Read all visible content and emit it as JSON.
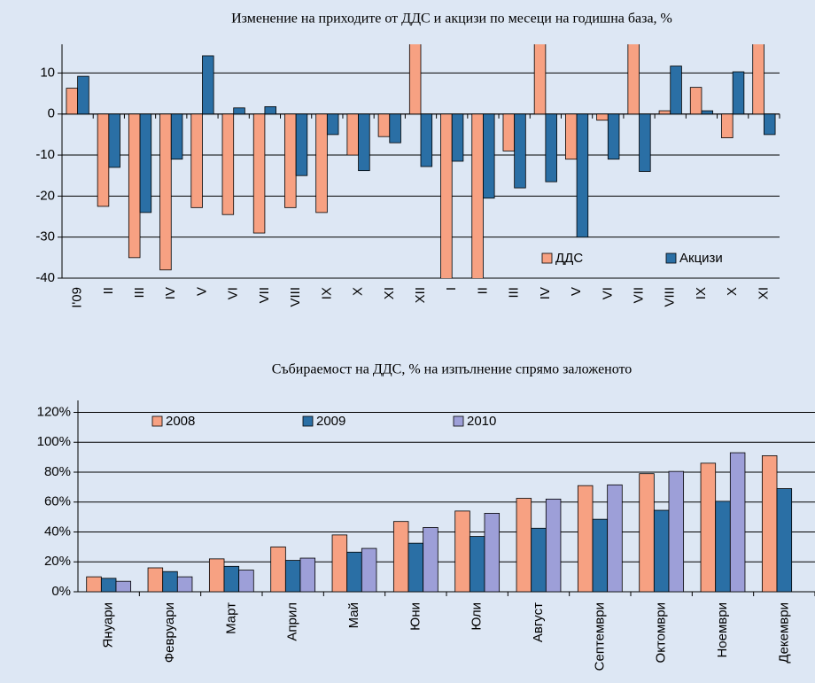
{
  "chart_data": [
    {
      "type": "bar",
      "title": "Изменение на приходите от ДДС и акцизи по месеци на годишна база, %",
      "categories": [
        "I'09",
        "II",
        "III",
        "IV",
        "V",
        "VI",
        "VII",
        "VIII",
        "IX",
        "X",
        "XI",
        "XII",
        "I",
        "II",
        "III",
        "IV",
        "V",
        "VI",
        "VII",
        "VIII",
        "IX",
        "X",
        "XI"
      ],
      "series": [
        {
          "name": "ДДС",
          "color": "#f7a182",
          "values": [
            6.3,
            -22.5,
            -35,
            -38,
            -22.8,
            -24.5,
            -29,
            -22.8,
            -24,
            -10,
            -5.5,
            20,
            -42,
            -41,
            -9,
            20,
            -11,
            -1.5,
            20,
            0.8,
            6.5,
            -5.8,
            20
          ]
        },
        {
          "name": "Акцизи",
          "color": "#2a6fa5",
          "values": [
            9.2,
            -13,
            -24,
            -11,
            14.2,
            1.5,
            1.8,
            -15,
            -5,
            -13.8,
            -7,
            -12.8,
            -11.5,
            -20.5,
            -18,
            -16.5,
            -30,
            -11,
            -14,
            11.7,
            0.8,
            10.3,
            -5
          ]
        }
      ],
      "ylim": [
        -40,
        17
      ],
      "yticks": [
        -40,
        -30,
        -20,
        -10,
        0,
        10
      ],
      "grid": true,
      "legend": "lower right"
    },
    {
      "type": "bar",
      "title": "Събираемост на ДДС, % на изпълнение спрямо заложеното",
      "categories": [
        "Януари",
        "Февруари",
        "Март",
        "Април",
        "Май",
        "Юни",
        "Юли",
        "Август",
        "Септември",
        "Октомври",
        "Ноември",
        "Декември"
      ],
      "series": [
        {
          "name": "2008",
          "color": "#f7a182",
          "values": [
            10,
            16,
            22,
            30,
            38,
            47,
            54,
            62.5,
            71,
            79,
            86,
            91
          ]
        },
        {
          "name": "2009",
          "color": "#2a6fa5",
          "values": [
            9,
            13.5,
            17,
            21,
            26.5,
            32.5,
            37,
            42.5,
            48.5,
            54.5,
            60.5,
            69
          ]
        },
        {
          "name": "2010",
          "color": "#9d9fd8",
          "values": [
            7,
            10,
            14.5,
            22.5,
            29,
            43,
            52.5,
            62,
            71.5,
            80.5,
            93,
            null
          ]
        }
      ],
      "ylim": [
        0,
        128
      ],
      "yticks": [
        {
          "value": 0,
          "label": "0%"
        },
        {
          "value": 20,
          "label": "20%"
        },
        {
          "value": 40,
          "label": "40%"
        },
        {
          "value": 60,
          "label": "60%"
        },
        {
          "value": 80,
          "label": "80%"
        },
        {
          "value": 100,
          "label": "100%"
        },
        {
          "value": 120,
          "label": "120%"
        }
      ],
      "grid": true,
      "legend": "upper left"
    }
  ]
}
